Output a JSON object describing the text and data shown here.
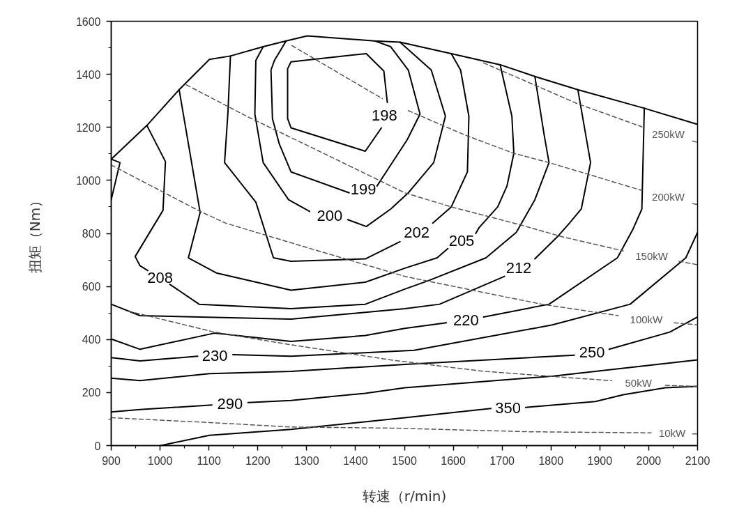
{
  "chart_data": {
    "type": "line",
    "xlabel": "转速（r/min)",
    "ylabel": "扭矩（Nm）",
    "xlim": [
      900,
      2100
    ],
    "ylim": [
      0,
      1600
    ],
    "xticks": [
      900,
      1000,
      1100,
      1200,
      1300,
      1400,
      1500,
      1600,
      1700,
      1800,
      1900,
      2000,
      2100
    ],
    "yticks": [
      0,
      200,
      400,
      600,
      800,
      1000,
      1200,
      1400,
      1600
    ],
    "series": [
      {
        "color": "#000000",
        "line_style": "solid",
        "x": [
          900,
          973,
          1039,
          1101,
          1144,
          1211,
          1258,
          1301,
          1439,
          1491,
          1596,
          1696,
          1767,
          1855,
          1991,
          2100
        ],
        "values": [
          1080,
          1207,
          1342,
          1456,
          1469,
          1504,
          1526,
          1545,
          1526,
          1521,
          1478,
          1436,
          1392,
          1342,
          1272,
          1211
        ]
      },
      {
        "color": "#000000",
        "line_style": "solid",
        "x": [
          900,
          918,
          900
        ],
        "values": [
          1080,
          1067,
          927
        ]
      },
      {
        "name": "198",
        "color": "#000000",
        "line_style": "solid",
        "x": [
          1261,
          1261,
          1268,
          1422,
          1458,
          1465,
          1459,
          1453,
          1420,
          1268,
          1261
        ],
        "values": [
          1233,
          1421,
          1447,
          1478,
          1412,
          1294,
          null,
          1198,
          1110,
          1198,
          1233
        ]
      },
      {
        "name": "199",
        "color": "#000000",
        "line_style": "solid",
        "x": [
          1258,
          1234,
          1227,
          1230,
          1244,
          1268,
          1387,
          1416,
          1444,
          1506,
          1532,
          1508,
          1472,
          1439
        ],
        "values": [
          1526,
          1452,
          1416,
          1233,
          1137,
          1032,
          953,
          null,
          979,
          1154,
          1250,
          1416,
          1504,
          1526
        ]
      },
      {
        "name": "200",
        "color": "#000000",
        "line_style": "solid",
        "x": [
          1211,
          1196,
          1194,
          1211,
          1263,
          1306,
          1347,
          1384,
          1422,
          1472,
          1508,
          1560,
          1584,
          1555,
          1491
        ],
        "values": [
          1504,
          1452,
          1250,
          1067,
          927,
          883,
          null,
          852,
          826,
          892,
          953,
          1067,
          1242,
          1416,
          1521
        ]
      },
      {
        "name": "202",
        "color": "#000000",
        "line_style": "solid",
        "x": [
          1144,
          1139,
          1132,
          1196,
          1232,
          1268,
          1420,
          1491,
          1525,
          1558,
          1596,
          1629,
          1632,
          1615,
          1596
        ],
        "values": [
          1469,
          1259,
          1067,
          918,
          708,
          695,
          704,
          769,
          null,
          839,
          900,
          1032,
          1242,
          1416,
          1478
        ]
      },
      {
        "name": "205",
        "color": "#000000",
        "line_style": "solid",
        "x": [
          1039,
          1082,
          1058,
          1115,
          1268,
          1420,
          1501,
          1567,
          1589,
          1617,
          1646,
          1653,
          1691,
          1710,
          1724,
          1720,
          1696
        ],
        "values": [
          1342,
          879,
          708,
          651,
          586,
          616,
          669,
          708,
          743,
          null,
          800,
          822,
          900,
          979,
          1102,
          1242,
          1436
        ]
      },
      {
        "name": "208",
        "color": "#000000",
        "line_style": "solid",
        "x": [
          973,
          1011,
          1006,
          949,
          959,
          975,
          1000,
          1020,
          1080,
          1268,
          1420,
          1501,
          1548,
          1667,
          1729,
          1767,
          1796,
          1786,
          1767
        ],
        "values": [
          1207,
          1071,
          887,
          713,
          678,
          660,
          null,
          608,
          533,
          516,
          533,
          590,
          621,
          708,
          804,
          927,
          1067,
          1172,
          1392
        ]
      },
      {
        "name": "212",
        "color": "#000000",
        "line_style": "solid",
        "x": [
          900,
          959,
          1268,
          1501,
          1572,
          1705,
          1734,
          1767,
          1815,
          1838,
          1862,
          1881,
          1855
        ],
        "values": [
          533,
          490,
          477,
          516,
          533,
          638,
          null,
          704,
          791,
          839,
          892,
          1067,
          1342
        ]
      },
      {
        "name": "220",
        "color": "#000000",
        "line_style": "solid",
        "x": [
          900,
          959,
          1111,
          1268,
          1420,
          1501,
          1586,
          1626,
          1662,
          1796,
          1936,
          1967,
          1986,
          1991
        ],
        "values": [
          402,
          363,
          424,
          393,
          415,
          442,
          463,
          null,
          485,
          533,
          708,
          813,
          892,
          1272
        ]
      },
      {
        "name": "230",
        "color": "#000000",
        "line_style": "solid",
        "x": [
          900,
          959,
          1077,
          1112,
          1149,
          1268,
          1520,
          1803,
          1962,
          2076,
          2100
        ],
        "values": [
          332,
          319,
          337,
          null,
          343,
          337,
          359,
          455,
          533,
          708,
          804
        ]
      },
      {
        "name": "250",
        "color": "#000000",
        "line_style": "solid",
        "x": [
          900,
          959,
          1101,
          1268,
          1501,
          1848,
          1884,
          1919,
          2043,
          2100
        ],
        "values": [
          254,
          245,
          271,
          280,
          306,
          341,
          null,
          363,
          428,
          485
        ]
      },
      {
        "name": "290",
        "color": "#000000",
        "line_style": "solid",
        "x": [
          900,
          959,
          1106,
          1143,
          1180,
          1268,
          1420,
          1501,
          1805,
          2100
        ],
        "values": [
          127,
          136,
          153,
          null,
          162,
          170,
          197,
          218,
          262,
          323
        ]
      },
      {
        "name": "350",
        "color": "#000000",
        "line_style": "solid",
        "x": [
          1001,
          1101,
          1268,
          1501,
          1677,
          1712,
          1748,
          1891,
          1948,
          2034,
          2100
        ],
        "values": [
          0,
          39,
          61,
          105,
          140,
          null,
          144,
          166,
          192,
          218,
          223
        ]
      },
      {
        "name": "250kW",
        "color": "#555555",
        "line_style": "dashed",
        "x": [
          1662,
          1772,
          1853,
          1986,
          2040,
          2090,
          2100
        ],
        "values": [
          1443,
          1355,
          1290,
          1202,
          null,
          1148,
          1143
        ]
      },
      {
        "name": "200kW",
        "color": "#555555",
        "line_style": "dashed",
        "x": [
          1270,
          1455,
          1481,
          1508,
          1624,
          1724,
          1796,
          1876,
          1986,
          2040,
          2090,
          2100
        ],
        "values": [
          1508,
          1308,
          null,
          1263,
          1171,
          1102,
          1067,
          1023,
          962,
          null,
          912,
          909
        ]
      },
      {
        "name": "150kW",
        "color": "#555555",
        "line_style": "dashed",
        "x": [
          1054,
          1177,
          1291,
          1501,
          1596,
          1724,
          1824,
          1948,
          2006,
          2062,
          2100
        ],
        "values": [
          1360,
          1242,
          1141,
          953,
          900,
          839,
          787,
          734,
          null,
          695,
          682
        ]
      },
      {
        "name": "100kW",
        "color": "#555555",
        "line_style": "dashed",
        "x": [
          900,
          1082,
          1134,
          1291,
          1501,
          1639,
          1781,
          1938,
          1995,
          2052,
          2100
        ],
        "values": [
          1058,
          883,
          839,
          752,
          638,
          586,
          533,
          490,
          null,
          463,
          455
        ]
      },
      {
        "name": "50kW",
        "color": "#555555",
        "line_style": "dashed",
        "x": [
          935,
          1111,
          1268,
          1472,
          1662,
          1853,
          1924,
          1979,
          2034,
          2100
        ],
        "values": [
          507,
          428,
          380,
          323,
          280,
          254,
          245,
          null,
          227,
          223
        ]
      },
      {
        "name": "10kW",
        "color": "#555555",
        "line_style": "dashed",
        "x": [
          900,
          1101,
          1268,
          1472,
          1758,
          2005,
          2048,
          2090,
          2100
        ],
        "values": [
          105,
          87,
          70,
          66,
          52,
          48,
          null,
          44,
          44
        ]
      }
    ]
  }
}
